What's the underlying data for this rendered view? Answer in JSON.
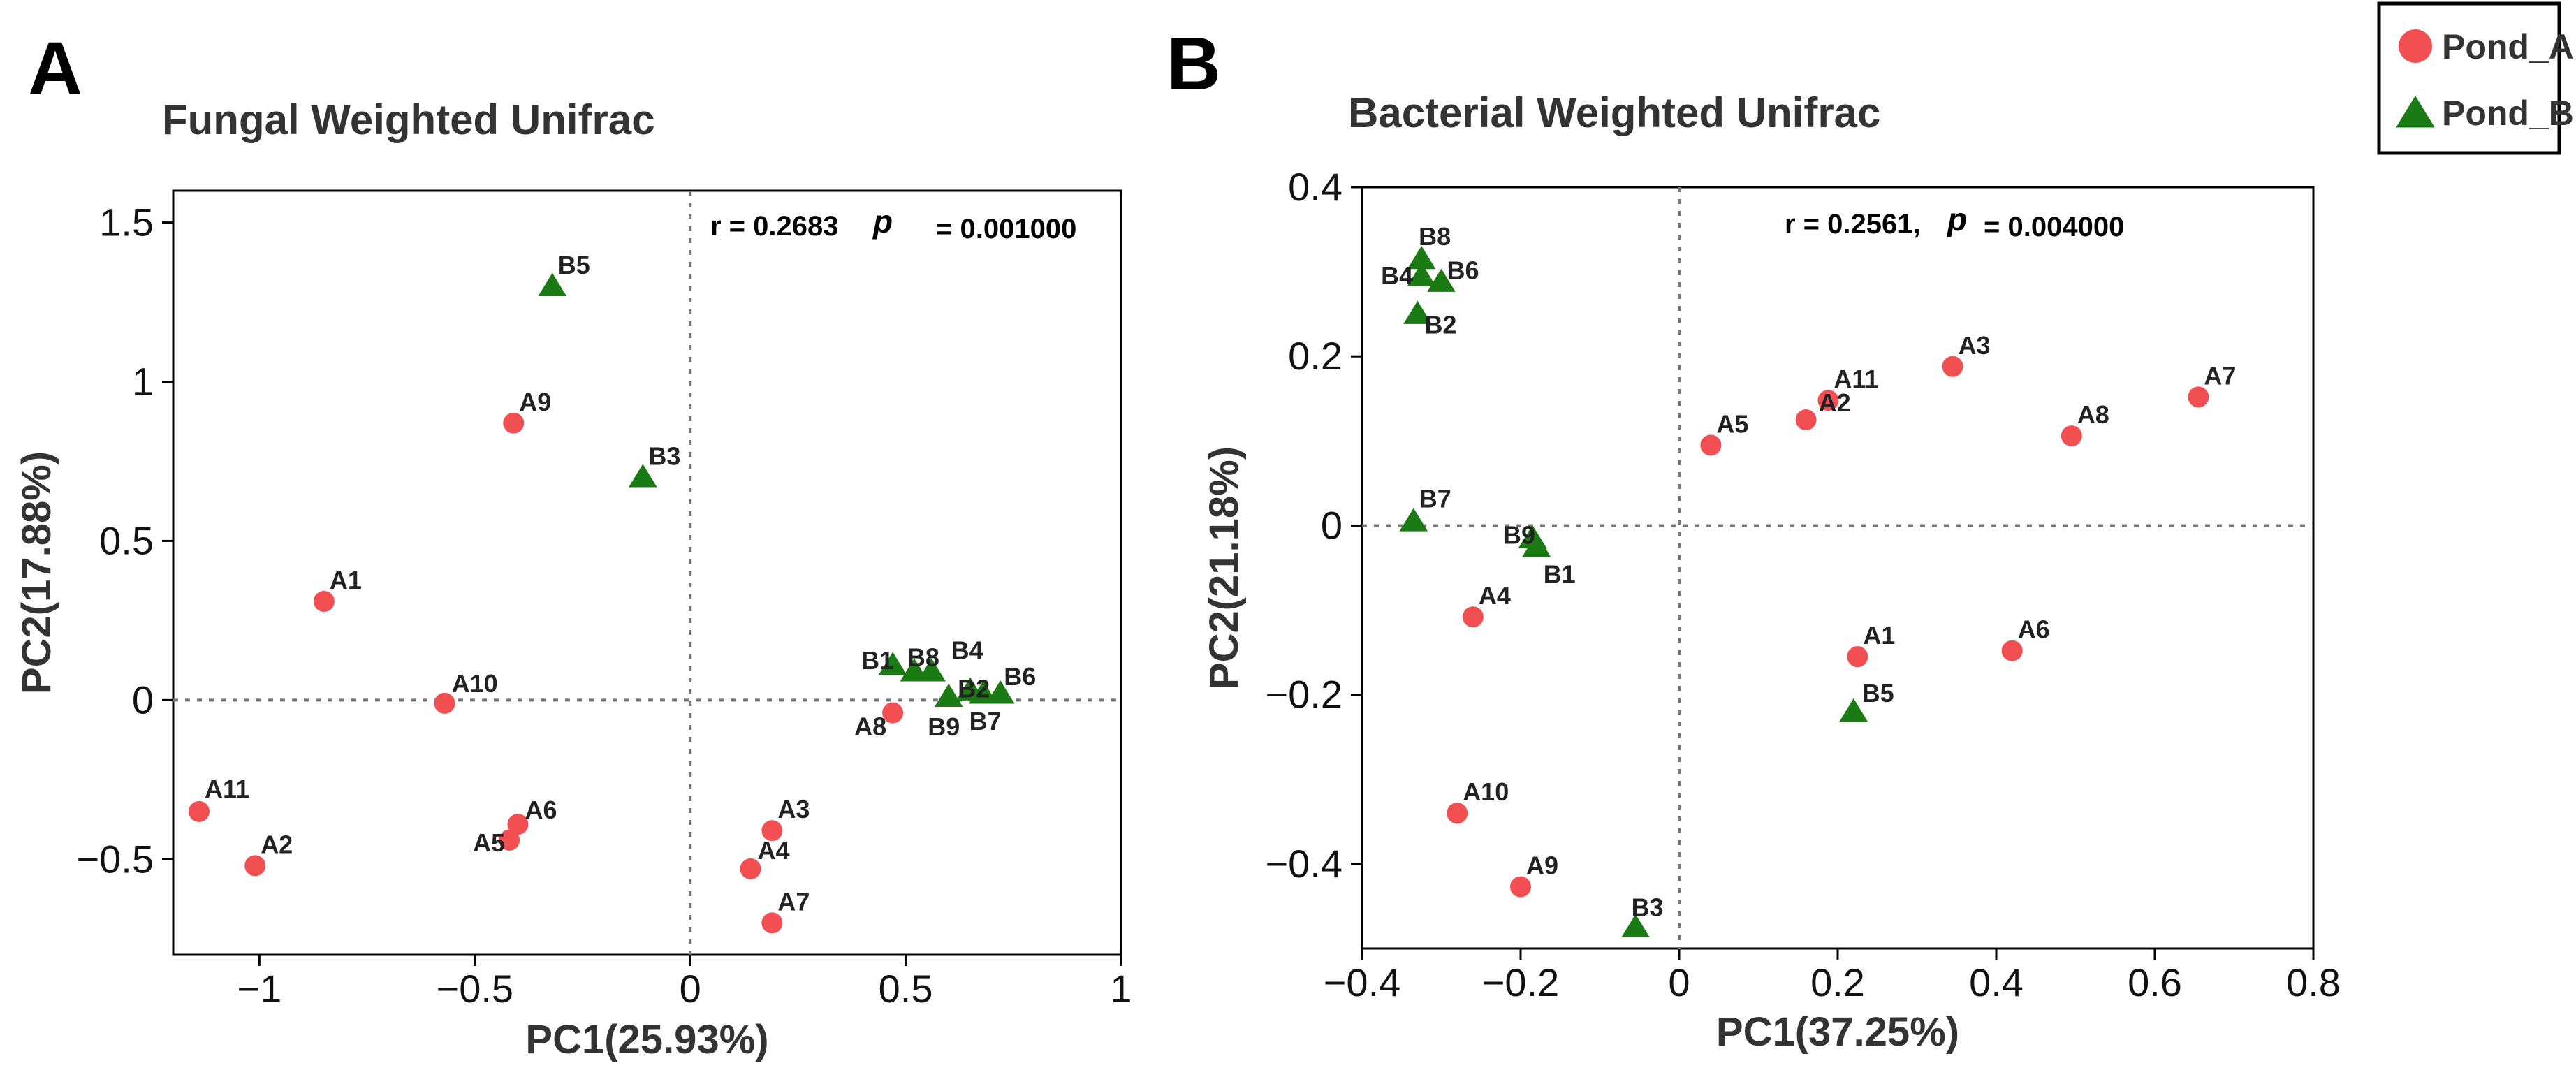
{
  "panels": [
    {
      "letter": "A",
      "chart_data": {
        "type": "scatter",
        "title": "Fungal Weighted Unifrac",
        "xlabel": "PC1(25.93%)",
        "ylabel": "PC2(17.88%)",
        "stat_r": "r = 0.2683",
        "stat_p_symbol": "p",
        "stat_p_value": "= 0.001000",
        "xlim": [
          -1.2,
          1.0
        ],
        "ylim": [
          -0.8,
          1.6
        ],
        "x_ticks": [
          -1,
          -0.5,
          0,
          0.5,
          1
        ],
        "x_tick_labels": [
          "−1",
          "−0.5",
          "0",
          "0.5",
          "1"
        ],
        "y_ticks": [
          -0.5,
          0,
          0.5,
          1,
          1.5
        ],
        "y_tick_labels": [
          "−0.5",
          "0",
          "0.5",
          "1",
          "1.5"
        ],
        "series": [
          {
            "name": "Pond_A",
            "marker": "circle",
            "color": "#f14f52",
            "points": [
              {
                "label": "A1",
                "x": -0.85,
                "y": 0.31
              },
              {
                "label": "A2",
                "x": -1.01,
                "y": -0.52
              },
              {
                "label": "A3",
                "x": 0.19,
                "y": -0.41
              },
              {
                "label": "A4",
                "x": 0.14,
                "y": -0.53
              },
              {
                "label": "A5",
                "x": -0.42,
                "y": -0.44
              },
              {
                "label": "A6",
                "x": -0.4,
                "y": -0.39
              },
              {
                "label": "A7",
                "x": 0.19,
                "y": -0.7
              },
              {
                "label": "A8",
                "x": 0.47,
                "y": -0.04
              },
              {
                "label": "A9",
                "x": -0.41,
                "y": 0.87
              },
              {
                "label": "A10",
                "x": -0.57,
                "y": -0.01
              },
              {
                "label": "A11",
                "x": -1.14,
                "y": -0.35
              }
            ]
          },
          {
            "name": "Pond_B",
            "marker": "triangle",
            "color": "#1a7a13",
            "points": [
              {
                "label": "B1",
                "x": 0.47,
                "y": 0.11
              },
              {
                "label": "B2",
                "x": 0.65,
                "y": 0.03
              },
              {
                "label": "B3",
                "x": -0.11,
                "y": 0.7
              },
              {
                "label": "B4",
                "x": 0.56,
                "y": 0.09
              },
              {
                "label": "B5",
                "x": -0.32,
                "y": 1.3
              },
              {
                "label": "B6",
                "x": 0.72,
                "y": 0.02
              },
              {
                "label": "B7",
                "x": 0.68,
                "y": 0.02
              },
              {
                "label": "B8",
                "x": 0.52,
                "y": 0.09
              },
              {
                "label": "B9",
                "x": 0.6,
                "y": 0.01
              }
            ]
          }
        ]
      }
    },
    {
      "letter": "B",
      "chart_data": {
        "type": "scatter",
        "title": "Bacterial Weighted Unifrac",
        "xlabel": "PC1(37.25%)",
        "ylabel": "PC2(21.18%)",
        "stat_r": "r = 0.2561,",
        "stat_p_symbol": "p",
        "stat_p_value": "= 0.004000",
        "xlim": [
          -0.4,
          0.8
        ],
        "ylim": [
          -0.5,
          0.4
        ],
        "x_ticks": [
          -0.4,
          -0.2,
          0,
          0.2,
          0.4,
          0.6,
          0.8
        ],
        "x_tick_labels": [
          "−0.4",
          "−0.2",
          "0",
          "0.2",
          "0.4",
          "0.6",
          "0.8"
        ],
        "y_ticks": [
          -0.4,
          -0.2,
          0,
          0.2,
          0.4
        ],
        "y_tick_labels": [
          "−0.4",
          "−0.2",
          "0",
          "0.2",
          "0.4"
        ],
        "series": [
          {
            "name": "Pond_A",
            "marker": "circle",
            "color": "#f14f52",
            "points": [
              {
                "label": "A1",
                "x": 0.225,
                "y": -0.155
              },
              {
                "label": "A2",
                "x": 0.16,
                "y": 0.125
              },
              {
                "label": "A3",
                "x": 0.345,
                "y": 0.188
              },
              {
                "label": "A4",
                "x": -0.26,
                "y": -0.108
              },
              {
                "label": "A5",
                "x": 0.04,
                "y": 0.095
              },
              {
                "label": "A6",
                "x": 0.42,
                "y": -0.148
              },
              {
                "label": "A7",
                "x": 0.655,
                "y": 0.152
              },
              {
                "label": "A8",
                "x": 0.495,
                "y": 0.106
              },
              {
                "label": "A9",
                "x": -0.2,
                "y": -0.427
              },
              {
                "label": "A10",
                "x": -0.28,
                "y": -0.34
              },
              {
                "label": "A11",
                "x": 0.188,
                "y": 0.148
              }
            ]
          },
          {
            "name": "Pond_B",
            "marker": "triangle",
            "color": "#1a7a13",
            "points": [
              {
                "label": "B1",
                "x": -0.18,
                "y": -0.025
              },
              {
                "label": "B2",
                "x": -0.33,
                "y": 0.25
              },
              {
                "label": "B3",
                "x": -0.055,
                "y": -0.475
              },
              {
                "label": "B4",
                "x": -0.325,
                "y": 0.295
              },
              {
                "label": "B5",
                "x": 0.22,
                "y": -0.22
              },
              {
                "label": "B6",
                "x": -0.3,
                "y": 0.288
              },
              {
                "label": "B7",
                "x": -0.335,
                "y": 0.005
              },
              {
                "label": "B8",
                "x": -0.325,
                "y": 0.315
              },
              {
                "label": "B9",
                "x": -0.185,
                "y": -0.015
              }
            ]
          }
        ]
      }
    }
  ],
  "legend": {
    "items": [
      {
        "name": "Pond_A",
        "marker": "circle",
        "color": "#f14f52"
      },
      {
        "name": "Pond_B",
        "marker": "triangle",
        "color": "#1a7a13"
      }
    ]
  }
}
